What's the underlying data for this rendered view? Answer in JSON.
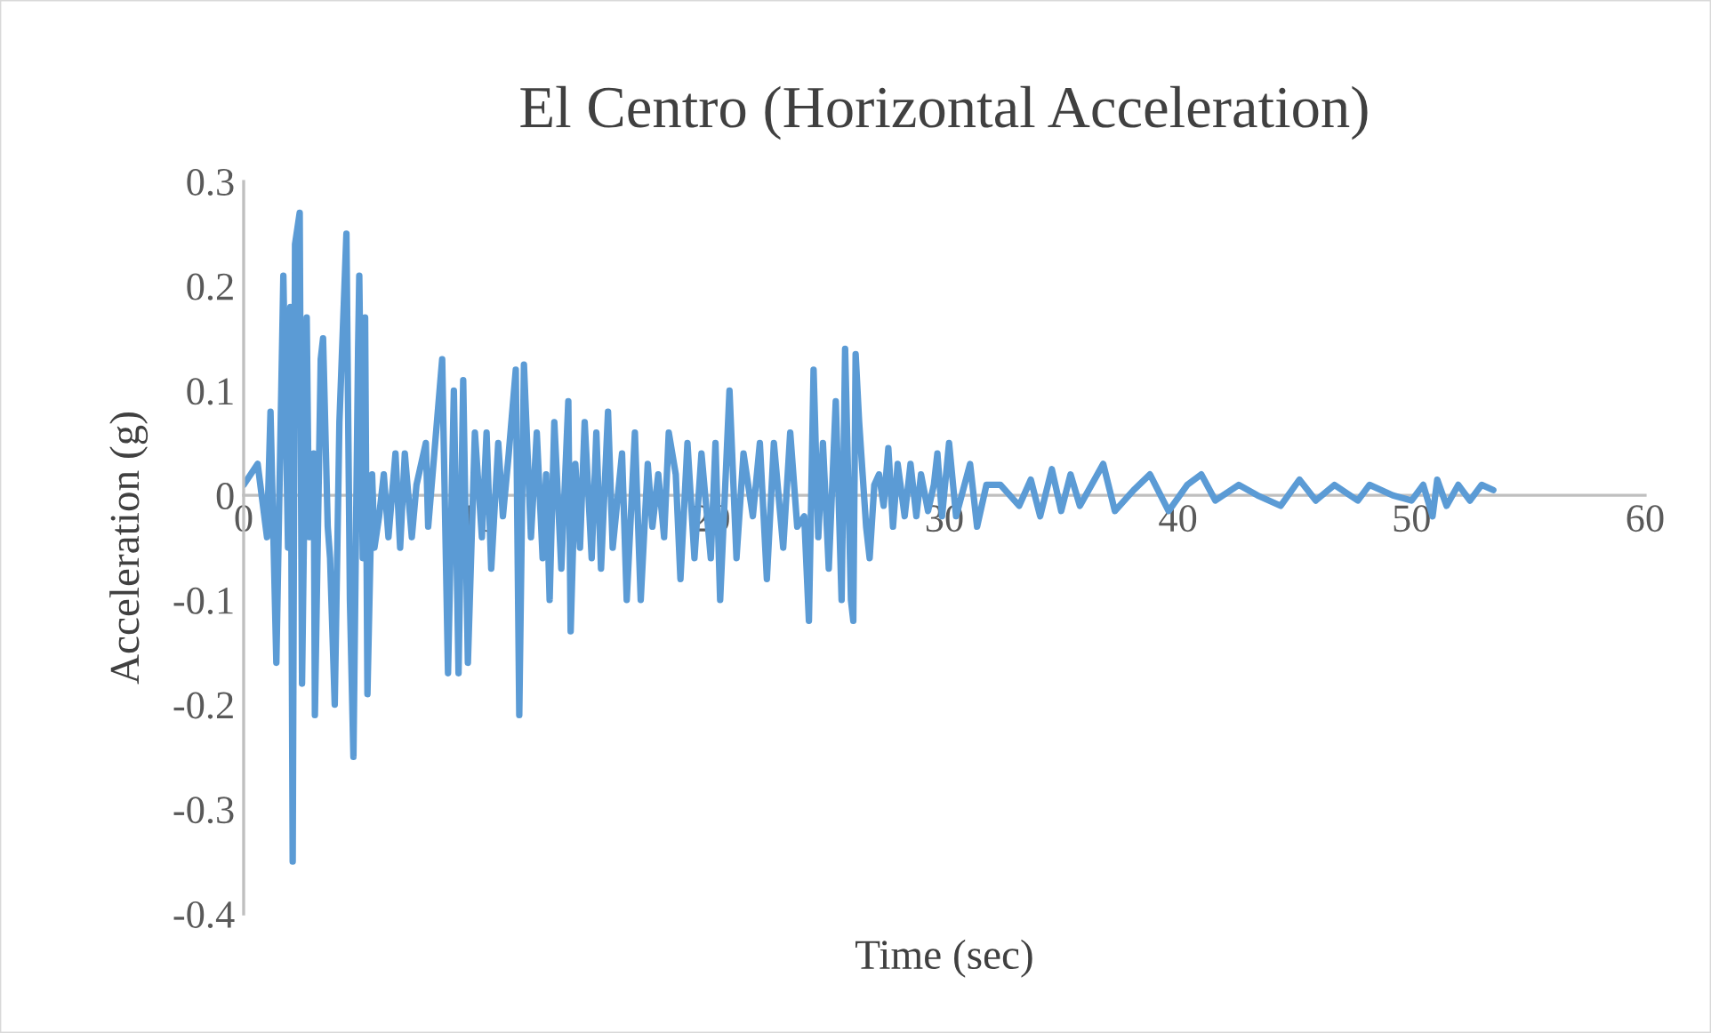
{
  "chart_data": {
    "type": "line",
    "title": "El Centro (Horizontal Acceleration)",
    "xlabel": "Time (sec)",
    "ylabel": "Acceleration (g)",
    "xlim": [
      0,
      60
    ],
    "ylim": [
      -0.4,
      0.3
    ],
    "xticks": [
      0,
      10,
      20,
      30,
      40,
      50,
      60
    ],
    "yticks": [
      -0.4,
      -0.3,
      -0.2,
      -0.1,
      0,
      0.1,
      0.2,
      0.3
    ],
    "series": [
      {
        "color": "#5b9bd5",
        "x": [
          0,
          0.6,
          1.0,
          1.15,
          1.4,
          1.7,
          1.9,
          2.0,
          2.1,
          2.2,
          2.4,
          2.5,
          2.7,
          2.8,
          3.0,
          3.05,
          3.3,
          3.4,
          3.6,
          3.7,
          3.9,
          4.1,
          4.4,
          4.55,
          4.7,
          4.9,
          4.95,
          5.1,
          5.2,
          5.3,
          5.5,
          5.6,
          5.8,
          6.0,
          6.2,
          6.5,
          6.7,
          6.9,
          7.2,
          7.4,
          7.8,
          7.9,
          8.5,
          8.75,
          9.0,
          9.2,
          9.4,
          9.6,
          9.9,
          10.2,
          10.4,
          10.6,
          10.9,
          11.1,
          11.35,
          11.65,
          11.8,
          12.0,
          12.3,
          12.55,
          12.8,
          12.95,
          13.1,
          13.3,
          13.6,
          13.9,
          14.0,
          14.2,
          14.4,
          14.6,
          14.9,
          15.1,
          15.3,
          15.6,
          15.8,
          16.2,
          16.4,
          16.75,
          17.0,
          17.3,
          17.5,
          17.75,
          18.0,
          18.2,
          18.5,
          18.7,
          19.0,
          19.3,
          19.6,
          20.0,
          20.2,
          20.4,
          20.8,
          21.1,
          21.4,
          21.8,
          22.1,
          22.4,
          22.7,
          23.1,
          23.4,
          23.7,
          24.0,
          24.2,
          24.4,
          24.6,
          24.8,
          25.05,
          25.35,
          25.6,
          25.75,
          26.0,
          26.1,
          26.2,
          26.35,
          26.65,
          26.8,
          27.0,
          27.2,
          27.4,
          27.6,
          27.8,
          28.0,
          28.3,
          28.55,
          28.8,
          29.0,
          29.3,
          29.55,
          29.7,
          29.9,
          30.2,
          30.5,
          31.1,
          31.4,
          31.8,
          32.4,
          33.2,
          33.7,
          34.1,
          34.6,
          35.0,
          35.4,
          35.8,
          36.8,
          37.3,
          38.1,
          38.8,
          39.6,
          40.4,
          41.0,
          41.6,
          42.6,
          43.4,
          44.4,
          45.2,
          45.9,
          46.7,
          47.7,
          48.2,
          49.2,
          50.0,
          50.5,
          50.9,
          51.1,
          51.5,
          52.0,
          52.5,
          53.0,
          53.5
        ],
        "values": [
          0.01,
          0.03,
          -0.04,
          0.08,
          -0.16,
          0.21,
          -0.05,
          0.18,
          -0.35,
          0.24,
          0.27,
          -0.18,
          0.17,
          -0.04,
          0.04,
          -0.21,
          0.13,
          0.15,
          -0.03,
          -0.06,
          -0.2,
          0.07,
          0.25,
          -0.1,
          -0.25,
          0.14,
          0.21,
          -0.06,
          0.17,
          -0.19,
          0.02,
          -0.05,
          -0.02,
          0.02,
          -0.04,
          0.04,
          -0.05,
          0.04,
          -0.04,
          0.01,
          0.05,
          -0.03,
          0.13,
          -0.17,
          0.1,
          -0.17,
          0.11,
          -0.16,
          0.06,
          -0.04,
          0.06,
          -0.07,
          0.05,
          -0.02,
          0.04,
          0.12,
          -0.21,
          0.125,
          -0.04,
          0.06,
          -0.06,
          0.02,
          -0.1,
          0.07,
          -0.07,
          0.09,
          -0.13,
          0.03,
          -0.05,
          0.07,
          -0.06,
          0.06,
          -0.07,
          0.08,
          -0.05,
          0.04,
          -0.1,
          0.06,
          -0.1,
          0.03,
          -0.03,
          0.02,
          -0.04,
          0.06,
          0.02,
          -0.08,
          0.05,
          -0.06,
          0.04,
          -0.06,
          0.05,
          -0.1,
          0.1,
          -0.06,
          0.04,
          -0.02,
          0.05,
          -0.08,
          0.05,
          -0.05,
          0.06,
          -0.03,
          -0.02,
          -0.12,
          0.12,
          -0.04,
          0.05,
          -0.07,
          0.09,
          -0.1,
          0.14,
          -0.1,
          -0.12,
          0.135,
          0.07,
          -0.03,
          -0.06,
          0.01,
          0.02,
          -0.01,
          0.045,
          -0.03,
          0.03,
          -0.02,
          0.03,
          -0.02,
          0.02,
          -0.015,
          0.01,
          0.04,
          -0.02,
          0.05,
          -0.02,
          0.03,
          -0.03,
          0.01,
          0.01,
          -0.01,
          0.015,
          -0.02,
          0.025,
          -0.015,
          0.02,
          -0.01,
          0.03,
          -0.015,
          0.005,
          0.02,
          -0.015,
          0.01,
          0.02,
          -0.005,
          0.01,
          0.0,
          -0.01,
          0.015,
          -0.005,
          0.01,
          -0.005,
          0.01,
          0.0,
          -0.005,
          0.01,
          -0.02,
          0.015,
          -0.01,
          0.01,
          -0.005,
          0.01,
          0.005
        ]
      }
    ]
  }
}
